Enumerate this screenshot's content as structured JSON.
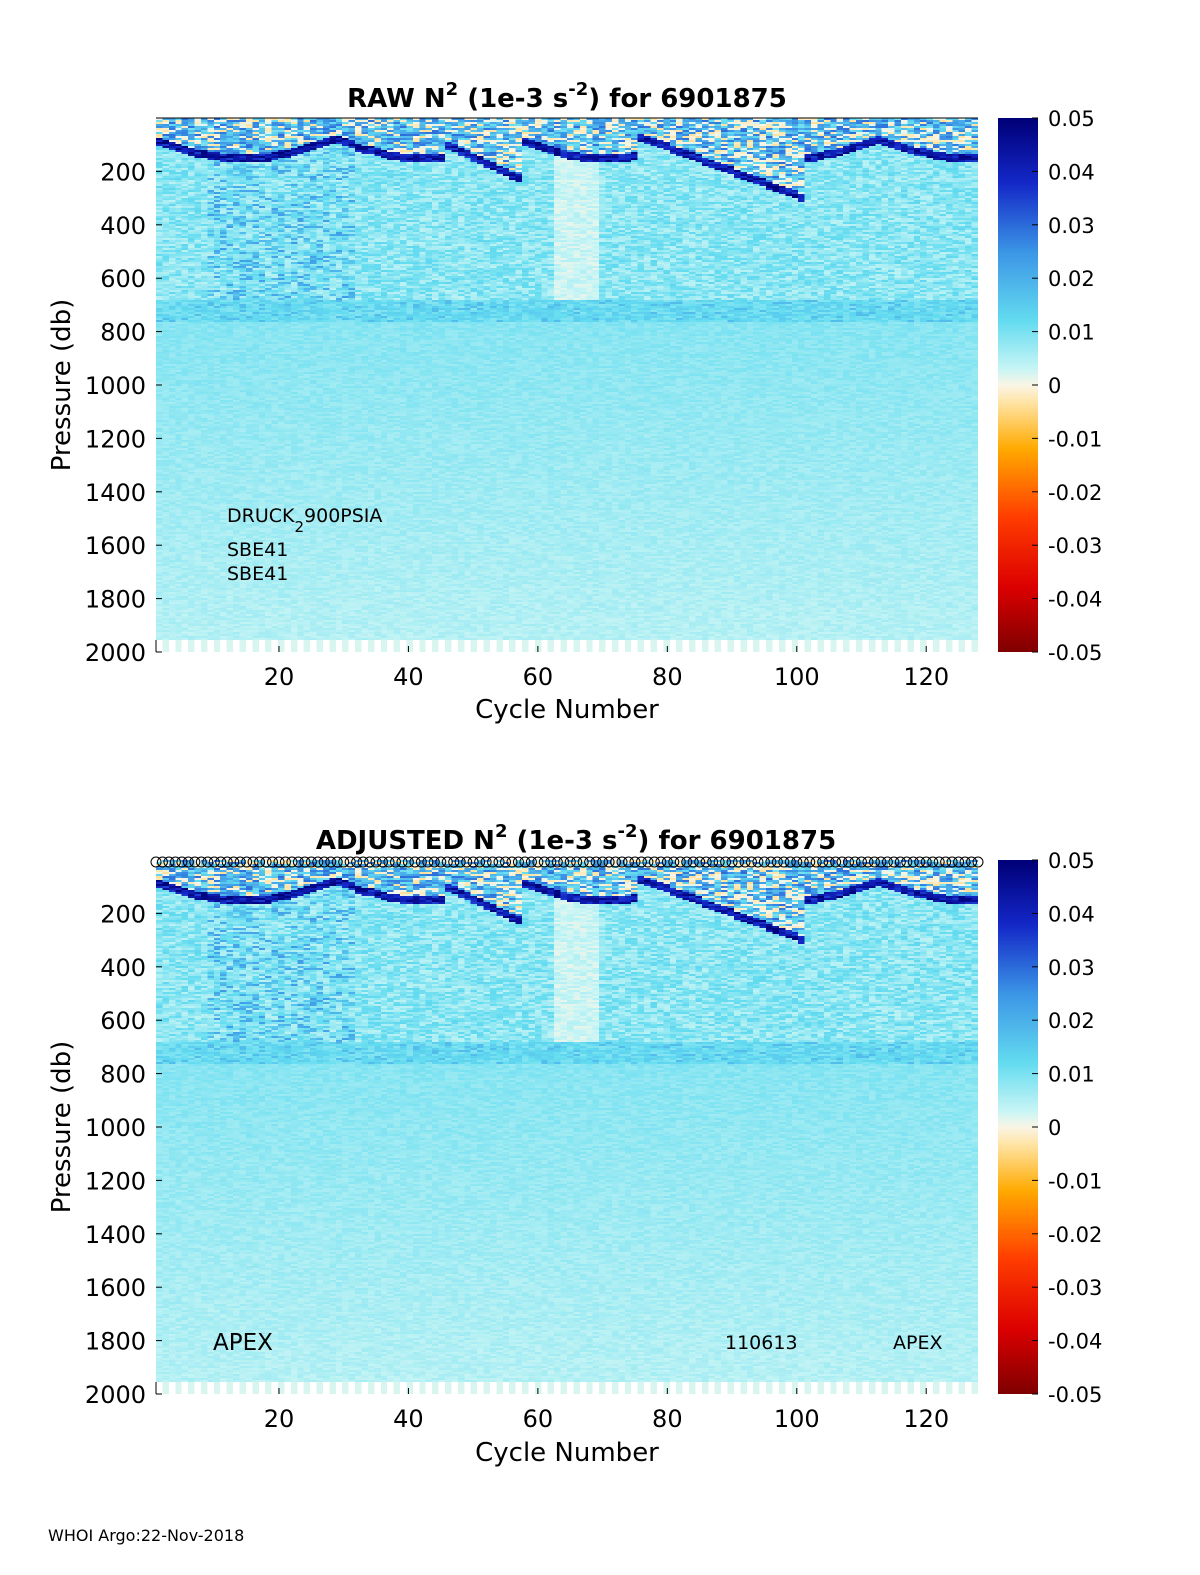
{
  "chart_data": [
    {
      "type": "heatmap",
      "title_main": "RAW N",
      "title_sup": "2",
      "title_unit_open": " (1e-3 s",
      "title_unit_sup": "-2",
      "title_rest": ") for 6901875",
      "xlabel": "Cycle Number",
      "ylabel": "Pressure (db)",
      "xlim": [
        1,
        128
      ],
      "ylim": [
        2000,
        0
      ],
      "xticks": [
        "20",
        "40",
        "60",
        "80",
        "100",
        "120"
      ],
      "yticks": [
        "200",
        "400",
        "600",
        "800",
        "1000",
        "1200",
        "1400",
        "1600",
        "1800",
        "2000"
      ],
      "colorbar": {
        "range": [
          -0.05,
          0.05
        ],
        "ticks": [
          "0.05",
          "0.04",
          "0.03",
          "0.02",
          "0.01",
          "0",
          "-0.01",
          "-0.02",
          "-0.03",
          "-0.04",
          "-0.05"
        ]
      },
      "annotations": {
        "sensor": "DRUCK",
        "sensor_sub": "2",
        "sensor_rest": "900PSIA",
        "ctd1": "SBE41",
        "ctd2": "SBE41"
      }
    },
    {
      "type": "heatmap",
      "title_main": "ADJUSTED N",
      "title_sup": "2",
      "title_unit_open": " (1e-3 s",
      "title_unit_sup": "-2",
      "title_rest": ") for 6901875",
      "xlabel": "Cycle Number",
      "ylabel": "Pressure (db)",
      "xlim": [
        1,
        128
      ],
      "ylim": [
        2000,
        0
      ],
      "xticks": [
        "20",
        "40",
        "60",
        "80",
        "100",
        "120"
      ],
      "yticks": [
        "200",
        "400",
        "600",
        "800",
        "1000",
        "1200",
        "1400",
        "1600",
        "1800",
        "2000"
      ],
      "colorbar": {
        "range": [
          -0.05,
          0.05
        ],
        "ticks": [
          "0.05",
          "0.04",
          "0.03",
          "0.02",
          "0.01",
          "0",
          "-0.01",
          "-0.02",
          "-0.03",
          "-0.04",
          "-0.05"
        ]
      },
      "qc_markers_top": true,
      "annotations": {
        "left": "APEX",
        "mid": "110613",
        "right": "APEX"
      }
    }
  ],
  "footer": "WHOI Argo:22-Nov-2018"
}
